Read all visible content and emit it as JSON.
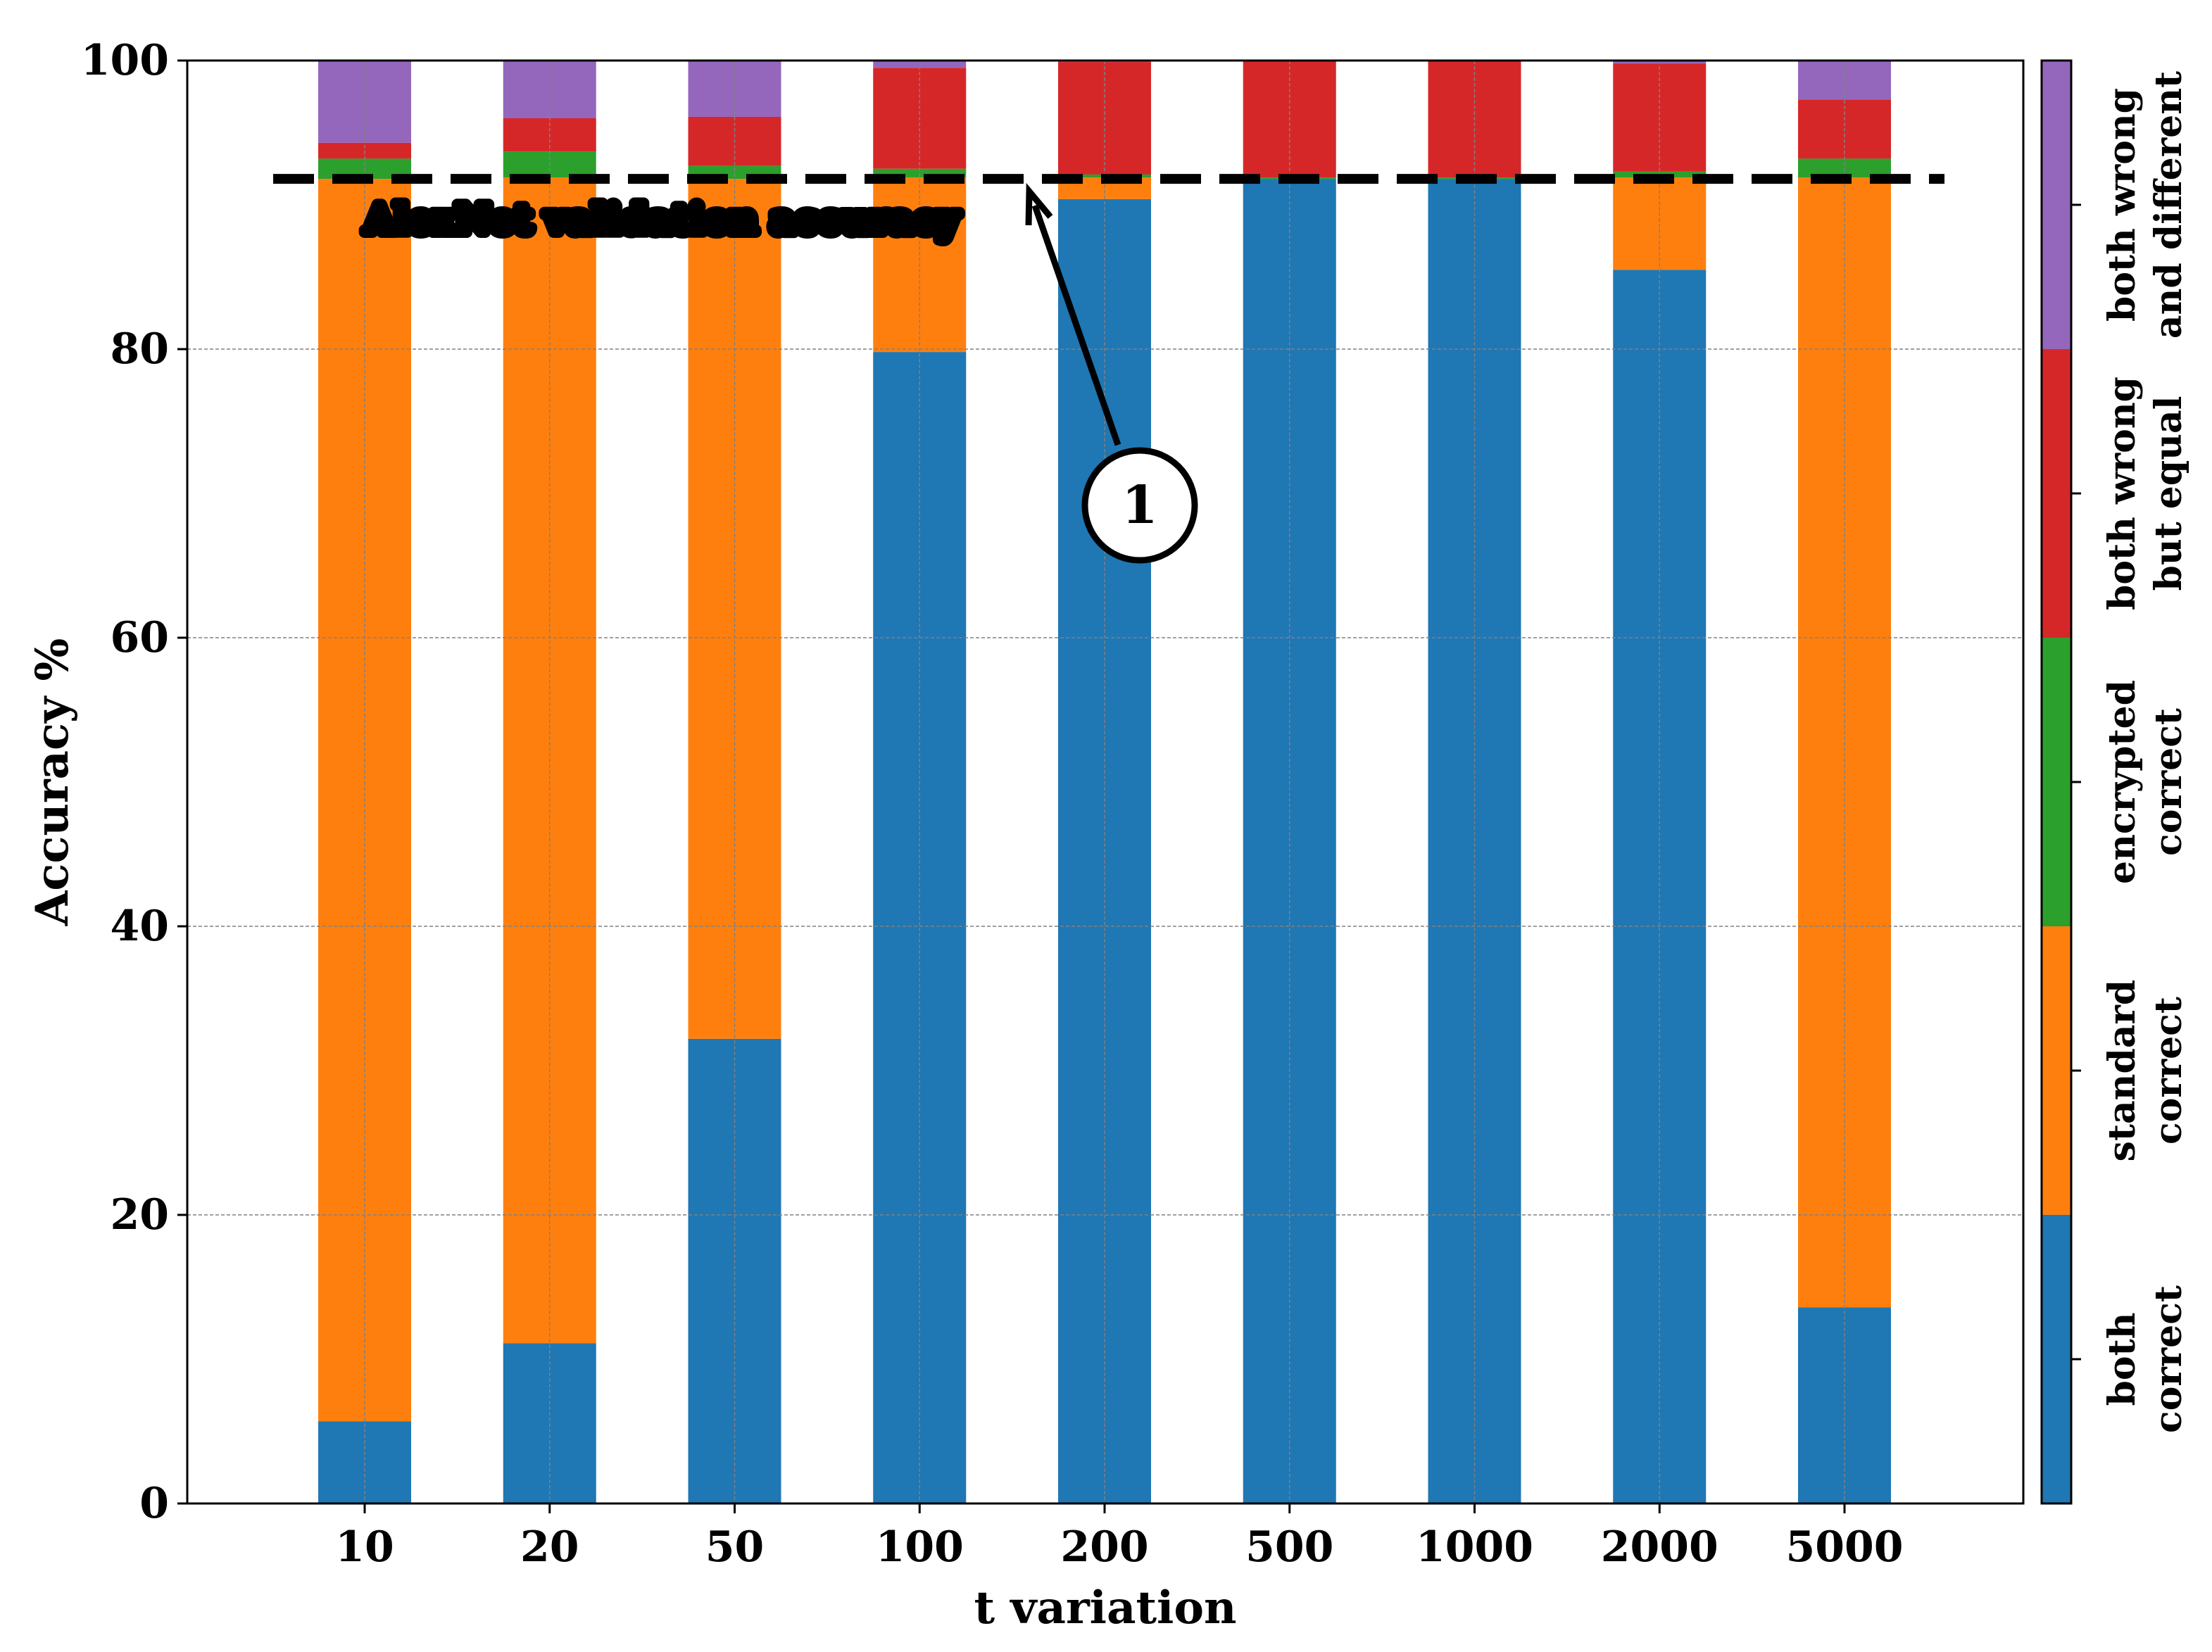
{
  "chart_data": {
    "type": "bar",
    "stacked": true,
    "xlabel": "t variation",
    "ylabel": "Accuracy %",
    "ylim": [
      0,
      100
    ],
    "yticks": [
      0,
      20,
      40,
      60,
      80,
      100
    ],
    "grid": true,
    "categories": [
      "10",
      "20",
      "50",
      "100",
      "200",
      "500",
      "1000",
      "2000",
      "5000"
    ],
    "series": [
      {
        "name": "both\ncorrect",
        "color": "#1f77b4",
        "values": [
          5.7,
          11.1,
          32.2,
          79.8,
          90.4,
          91.8,
          91.8,
          85.5,
          13.6
        ]
      },
      {
        "name": "standard\ncorrect",
        "color": "#ff7f0e",
        "values": [
          86.1,
          80.8,
          59.6,
          12.1,
          1.5,
          0.0,
          0.0,
          6.4,
          78.3
        ]
      },
      {
        "name": "encrypted\ncorrect",
        "color": "#2ca02c",
        "values": [
          1.4,
          1.8,
          0.9,
          0.6,
          0.2,
          0.1,
          0.1,
          0.4,
          1.3
        ]
      },
      {
        "name": "both wrong\nbut equal",
        "color": "#d62728",
        "values": [
          1.1,
          2.3,
          3.4,
          7.0,
          7.8,
          8.1,
          8.1,
          7.5,
          4.1
        ]
      },
      {
        "name": "both wrong\nand different",
        "color": "#9467bd",
        "values": [
          5.7,
          4.0,
          3.9,
          0.5,
          0.1,
          0.0,
          0.0,
          0.2,
          2.7
        ]
      }
    ],
    "reference_line": {
      "y": 91.8,
      "label": "AlexNet validation accuracy",
      "color": "#000000"
    },
    "annotation": {
      "label": "1"
    },
    "colorbar_labels": [
      [
        "both",
        "correct"
      ],
      [
        "standard",
        "correct"
      ],
      [
        "encrypted",
        "correct"
      ],
      [
        "both wrong",
        "but equal"
      ],
      [
        "both wrong",
        "and different"
      ]
    ]
  }
}
